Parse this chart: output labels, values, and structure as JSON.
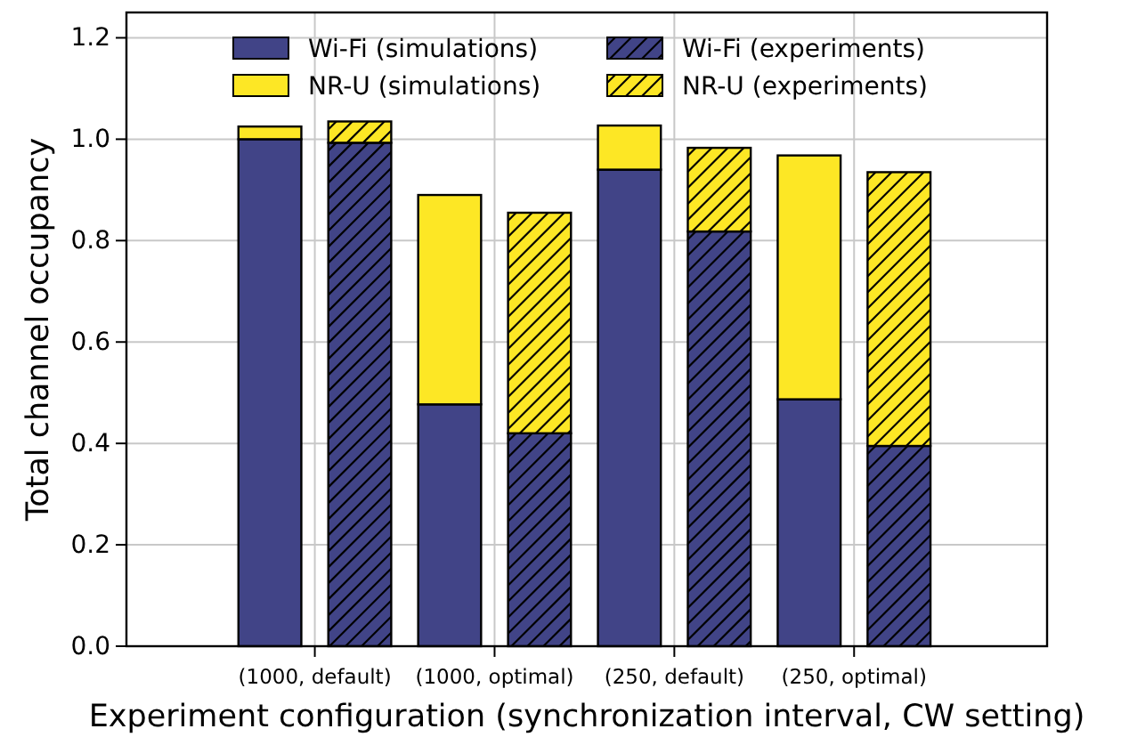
{
  "chart_data": {
    "type": "bar",
    "stacked": true,
    "xlabel": "Experiment configuration (synchronization interval, CW setting)",
    "ylabel": "Total channel occupancy",
    "categories": [
      "(1000, default)",
      null,
      "(1000, optimal)",
      null,
      "(250, default)",
      null,
      "(250, optimal)",
      null
    ],
    "series": [
      {
        "name": "Wi-Fi (simulations)",
        "color": "#414487",
        "values": [
          1.0,
          null,
          0.477,
          null,
          0.94,
          null,
          0.487,
          null
        ]
      },
      {
        "name": "NR-U (simulations)",
        "color": "#fde725",
        "values": [
          0.025,
          null,
          0.413,
          null,
          0.087,
          null,
          0.481,
          null
        ]
      },
      {
        "name": "Wi-Fi (experiments)",
        "color": "#414487",
        "values": [
          null,
          0.993,
          null,
          0.42,
          null,
          0.818,
          null,
          0.395
        ]
      },
      {
        "name": "NR-U (experiments)",
        "color": "#fde725",
        "values": [
          null,
          0.042,
          null,
          0.435,
          null,
          0.165,
          null,
          0.54
        ]
      }
    ],
    "ylim": [
      0,
      1.25
    ],
    "yticks": [
      {
        "value": 0,
        "label": "0.0"
      },
      {
        "value": 0.2,
        "label": "0.2"
      },
      {
        "value": 0.4,
        "label": "0.4"
      },
      {
        "value": 0.6,
        "label": "0.6"
      },
      {
        "value": 0.8,
        "label": "0.8"
      },
      {
        "value": 1.0,
        "label": "1.0"
      },
      {
        "value": 1.2,
        "label": "1.2"
      }
    ],
    "grid": true,
    "legend": "top"
  }
}
